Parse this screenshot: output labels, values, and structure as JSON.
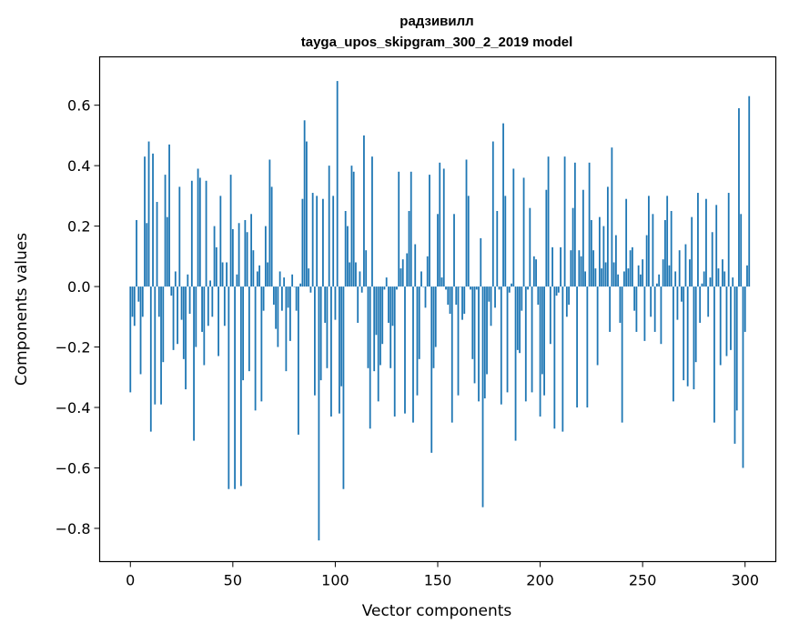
{
  "chart_data": {
    "type": "bar",
    "title": "радзивилл",
    "subtitle": "tayga_upos_skipgram_300_2_2019 model",
    "xlabel": "Vector components",
    "ylabel": "Components values",
    "xlim": [
      -15,
      315
    ],
    "ylim": [
      -0.91,
      0.76
    ],
    "xticks": [
      0,
      50,
      100,
      150,
      200,
      250,
      300
    ],
    "yticks": [
      0.6,
      0.4,
      0.2,
      0.0,
      -0.2,
      -0.4,
      -0.6,
      -0.8
    ],
    "ytick_labels": [
      "0.6",
      "0.4",
      "0.2",
      "0.0",
      "−0.2",
      "−0.4",
      "−0.6",
      "−0.8"
    ],
    "xtick_labels": [
      "0",
      "50",
      "100",
      "150",
      "200",
      "250",
      "300"
    ],
    "grid": false,
    "color": "#1f77b4",
    "values": [
      -0.35,
      -0.1,
      -0.13,
      0.22,
      -0.05,
      -0.29,
      -0.1,
      0.43,
      0.21,
      0.48,
      -0.48,
      0.44,
      -0.39,
      0.28,
      -0.1,
      -0.39,
      -0.25,
      0.37,
      0.23,
      0.47,
      -0.03,
      -0.21,
      0.05,
      -0.19,
      0.33,
      -0.11,
      -0.24,
      -0.34,
      0.04,
      -0.09,
      0.35,
      -0.51,
      -0.2,
      0.39,
      0.36,
      -0.15,
      -0.26,
      0.35,
      -0.13,
      0.02,
      -0.1,
      0.2,
      0.13,
      -0.23,
      0.3,
      0.08,
      -0.13,
      0.08,
      -0.67,
      0.37,
      0.19,
      -0.67,
      0.04,
      0.21,
      -0.66,
      -0.31,
      0.22,
      0.18,
      -0.28,
      0.24,
      0.12,
      -0.41,
      0.05,
      0.07,
      -0.38,
      -0.08,
      0.2,
      0.08,
      0.42,
      0.33,
      -0.06,
      -0.14,
      -0.2,
      0.05,
      -0.08,
      0.03,
      -0.28,
      -0.07,
      -0.18,
      0.04,
      0.0,
      -0.08,
      -0.49,
      0.01,
      0.29,
      0.55,
      0.48,
      0.06,
      -0.02,
      0.31,
      -0.36,
      0.3,
      -0.84,
      -0.31,
      0.29,
      -0.12,
      -0.27,
      0.4,
      -0.43,
      0.3,
      -0.11,
      0.68,
      -0.42,
      -0.33,
      -0.67,
      0.25,
      0.2,
      0.08,
      0.4,
      0.38,
      0.08,
      -0.12,
      0.05,
      -0.02,
      0.5,
      0.12,
      -0.27,
      -0.47,
      0.43,
      -0.28,
      -0.16,
      -0.38,
      -0.26,
      -0.19,
      -0.01,
      0.03,
      -0.12,
      -0.27,
      -0.13,
      -0.43,
      -0.01,
      0.38,
      0.06,
      0.09,
      -0.42,
      0.11,
      0.25,
      0.38,
      -0.45,
      0.14,
      -0.36,
      -0.24,
      0.05,
      0.0,
      -0.07,
      0.1,
      0.37,
      -0.55,
      -0.27,
      -0.2,
      0.24,
      0.41,
      0.03,
      0.39,
      -0.01,
      -0.06,
      -0.09,
      -0.45,
      0.24,
      -0.06,
      -0.36,
      0.0,
      -0.11,
      -0.09,
      0.42,
      0.3,
      -0.01,
      -0.24,
      -0.32,
      -0.01,
      -0.38,
      0.16,
      -0.73,
      -0.37,
      -0.29,
      -0.05,
      -0.13,
      0.48,
      -0.07,
      0.25,
      -0.01,
      -0.39,
      0.54,
      0.3,
      -0.35,
      -0.02,
      0.01,
      0.39,
      -0.51,
      -0.21,
      -0.22,
      -0.08,
      0.36,
      -0.38,
      -0.01,
      0.26,
      -0.35,
      0.1,
      0.09,
      -0.06,
      -0.43,
      -0.29,
      -0.36,
      0.32,
      0.43,
      -0.19,
      0.13,
      -0.47,
      -0.03,
      -0.02,
      0.13,
      -0.48,
      0.43,
      -0.1,
      -0.06,
      0.12,
      0.26,
      0.41,
      -0.4,
      0.12,
      0.1,
      0.32,
      0.05,
      -0.4,
      0.41,
      0.22,
      0.12,
      0.06,
      -0.26,
      0.23,
      0.06,
      0.2,
      0.08,
      0.33,
      -0.15,
      0.46,
      0.08,
      0.17,
      0.04,
      -0.12,
      -0.45,
      0.05,
      0.29,
      0.06,
      0.12,
      0.13,
      -0.08,
      -0.15,
      0.07,
      0.04,
      0.09,
      -0.18,
      0.17,
      0.3,
      -0.1,
      0.24,
      -0.15,
      0.01,
      0.04,
      -0.19,
      0.09,
      0.22,
      0.3,
      0.07,
      0.25,
      -0.38,
      0.05,
      -0.11,
      0.12,
      -0.05,
      -0.31,
      0.14,
      -0.33,
      0.09,
      0.23,
      -0.34,
      -0.25,
      0.31,
      -0.12,
      0.01,
      0.05,
      0.29,
      -0.1,
      0.03,
      0.18,
      -0.45,
      0.27,
      0.06,
      -0.26,
      0.09,
      0.05,
      -0.23,
      0.31,
      -0.21,
      0.03,
      -0.52,
      -0.41,
      0.59,
      0.24,
      -0.6,
      -0.15,
      0.07,
      0.63
    ]
  }
}
